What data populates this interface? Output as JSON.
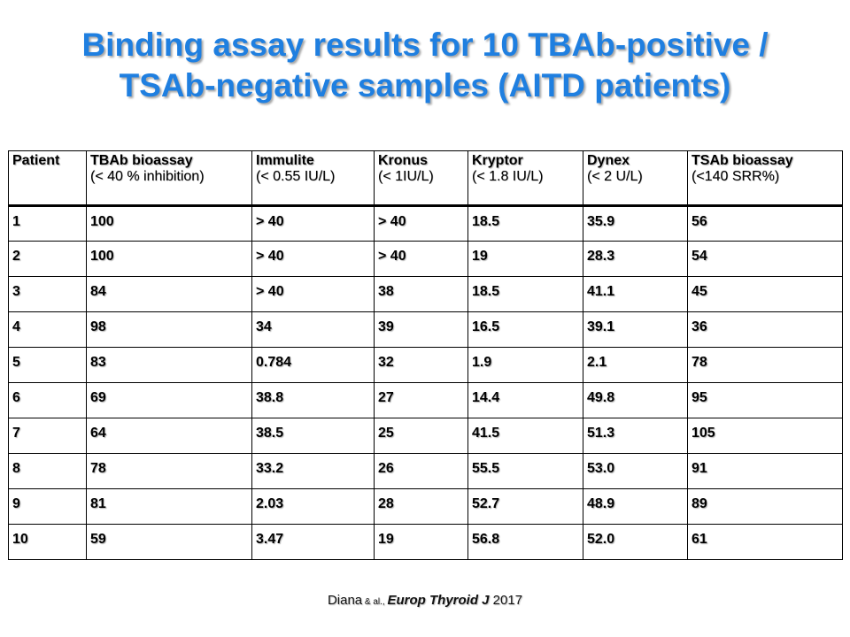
{
  "title": {
    "line1": "Binding assay results for 10 TBAb-positive /",
    "line2": "TSAb-negative samples (AITD patients)"
  },
  "table": {
    "headers": [
      {
        "name": "Patient",
        "sub": ""
      },
      {
        "name": "TBAb bioassay",
        "sub": "(< 40 % inhibition)"
      },
      {
        "name": "Immulite",
        "sub": "(< 0.55 IU/L)"
      },
      {
        "name": "Kronus",
        "sub": " (< 1IU/L)"
      },
      {
        "name": "Kryptor",
        "sub": "(< 1.8 IU/L)"
      },
      {
        "name": "Dynex",
        "sub": "(< 2 U/L)"
      },
      {
        "name": "TSAb bioassay",
        "sub": "(<140 SRR%)"
      }
    ],
    "rows": [
      [
        "1",
        "100",
        "> 40",
        "> 40",
        "18.5",
        "35.9",
        "56"
      ],
      [
        "2",
        "100",
        "> 40",
        "> 40",
        "19",
        "28.3",
        "54"
      ],
      [
        "3",
        "84",
        "> 40",
        "38",
        "18.5",
        "41.1",
        "45"
      ],
      [
        "4",
        "98",
        "34",
        "39",
        "16.5",
        "39.1",
        "36"
      ],
      [
        "5",
        "83",
        "0.784",
        "32",
        "1.9",
        "2.1",
        "78"
      ],
      [
        "6",
        "69",
        "38.8",
        "27",
        "14.4",
        "49.8",
        "95"
      ],
      [
        "7",
        "64",
        "38.5",
        "25",
        "41.5",
        "51.3",
        "105"
      ],
      [
        "8",
        "78",
        "33.2",
        "26",
        "55.5",
        "53.0",
        "91"
      ],
      [
        "9",
        "81",
        "2.03",
        "28",
        "52.7",
        "48.9",
        "89"
      ],
      [
        "10",
        "59",
        "3.47",
        "19",
        "56.8",
        "52.0",
        "61"
      ]
    ]
  },
  "citation": {
    "author": "Diana",
    "etal": " & al., ",
    "journal": "Europ Thyroid J",
    "year": " 2017"
  }
}
